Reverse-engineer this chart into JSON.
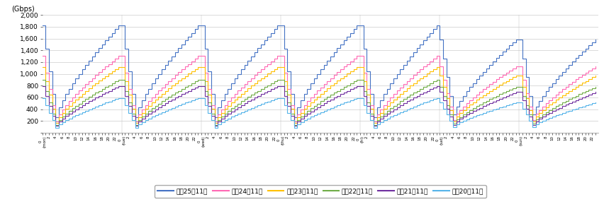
{
  "ylabel": "(Gbps)",
  "ylim": [
    0,
    2000
  ],
  "yticks": [
    0,
    200,
    400,
    600,
    800,
    1000,
    1200,
    1400,
    1600,
    1800,
    2000
  ],
  "ytick_labels": [
    "",
    "200",
    "400",
    "600",
    "800",
    "1,000",
    "1,200",
    "1,400",
    "1,600",
    "1,800",
    "2,000"
  ],
  "series_colors": [
    "#4472C4",
    "#FF69B4",
    "#FFC000",
    "#70AD47",
    "#7030A0",
    "#56B4E9"
  ],
  "series_labels": [
    "平成25年11月",
    "平成24年11月",
    "平成23年11月",
    "平成22年11月",
    "平成21年11月",
    "平成20年11月"
  ],
  "days": [
    "mon",
    "tue",
    "wed",
    "thu",
    "fri",
    "sat",
    "sun"
  ],
  "background_color": "#ffffff",
  "grid_color": "#cccccc",
  "scale_factors": [
    1.0,
    0.715,
    0.615,
    0.495,
    0.435,
    0.325
  ],
  "peak_base": 1820,
  "trough_base": 265,
  "weekend_peak_factor": 0.87,
  "weekend_trough_factor": 1.15
}
